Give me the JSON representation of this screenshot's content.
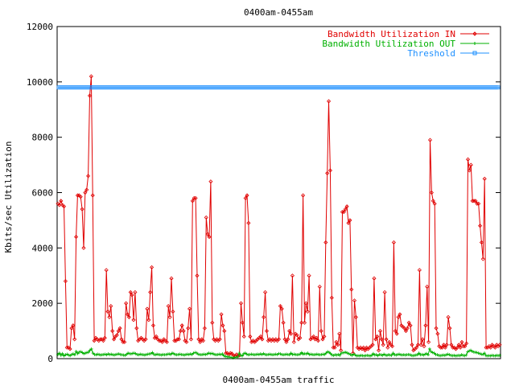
{
  "chart_data": {
    "type": "line",
    "title": "0400am-0455am",
    "xlabel": "0400am-0455am traffic",
    "ylabel": "Kbits/sec Utilization",
    "ylim": [
      0,
      12000
    ],
    "yticks": [
      0,
      2000,
      4000,
      6000,
      8000,
      10000,
      12000
    ],
    "ytick_labels": [
      "0",
      "2000",
      "4000",
      "6000",
      "8000",
      "10000",
      "12000"
    ],
    "grid": false,
    "legend_position": "top-right",
    "colors": {
      "in": "#e00000",
      "out": "#00b000",
      "threshold": "#1e90ff"
    },
    "series": [
      {
        "name": "Bandwidth Utilization IN",
        "values": [
          5600,
          5550,
          5700,
          5550,
          5500,
          2800,
          400,
          400,
          350,
          1100,
          1200,
          700,
          4400,
          5900,
          5900,
          5850,
          5400,
          4000,
          6000,
          6100,
          6600,
          9500,
          10200,
          5900,
          650,
          750,
          700,
          650,
          700,
          700,
          650,
          750,
          3200,
          1700,
          1500,
          1900,
          1000,
          700,
          800,
          850,
          1000,
          1100,
          700,
          600,
          600,
          2000,
          1600,
          1500,
          2400,
          2300,
          1400,
          2400,
          1100,
          650,
          700,
          750,
          700,
          650,
          700,
          1800,
          1400,
          2400,
          3300,
          1200,
          750,
          800,
          700,
          650,
          650,
          600,
          700,
          650,
          600,
          1900,
          1500,
          2900,
          1700,
          650,
          650,
          700,
          700,
          1000,
          1200,
          1000,
          650,
          600,
          1100,
          1800,
          700,
          5700,
          5800,
          5800,
          3000,
          700,
          600,
          700,
          650,
          1100,
          5100,
          4500,
          4400,
          6400,
          1300,
          700,
          650,
          700,
          650,
          700,
          1600,
          1200,
          1000,
          200,
          200,
          150,
          200,
          180,
          120,
          100,
          150,
          100,
          120,
          2000,
          1300,
          800,
          5800,
          5900,
          4900,
          800,
          600,
          650,
          600,
          650,
          700,
          750,
          800,
          700,
          1500,
          2400,
          1000,
          650,
          700,
          650,
          700,
          650,
          700,
          650,
          700,
          1900,
          1800,
          1300,
          700,
          600,
          700,
          1000,
          900,
          3000,
          600,
          900,
          850,
          700,
          750,
          1300,
          5900,
          1300,
          2000,
          1700,
          3000,
          700,
          750,
          800,
          700,
          750,
          650,
          2600,
          1000,
          700,
          800,
          4200,
          6700,
          9300,
          6800,
          2200,
          400,
          400,
          600,
          500,
          900,
          300,
          5300,
          5300,
          5400,
          5500,
          4900,
          5000,
          2500,
          200,
          2100,
          1500,
          400,
          350,
          400,
          350,
          400,
          300,
          400,
          350,
          400,
          450,
          500,
          2900,
          700,
          800,
          300,
          1000,
          700,
          500,
          2400,
          700,
          400,
          600,
          500,
          450,
          4200,
          1000,
          900,
          1500,
          1600,
          1200,
          1150,
          1100,
          1000,
          1100,
          1300,
          1200,
          500,
          300,
          350,
          400,
          500,
          3200,
          500,
          700,
          450,
          1200,
          2600,
          600,
          7900,
          6000,
          5700,
          5600,
          1100,
          900,
          450,
          400,
          400,
          500,
          400,
          500,
          1500,
          1100,
          500,
          400,
          400,
          350,
          400,
          500,
          400,
          600,
          450,
          450,
          550,
          7200,
          6800,
          7000,
          5700,
          5700,
          5700,
          5600,
          5600,
          4800,
          4200,
          3600,
          6500,
          400,
          400,
          450,
          400,
          500,
          450,
          400,
          500,
          450,
          500
        ]
      },
      {
        "name": "Bandwidth Utilization OUT",
        "values": [
          150,
          200,
          120,
          180,
          100,
          140,
          160,
          130,
          110,
          150,
          170,
          140,
          260,
          180,
          240,
          250,
          220,
          180,
          200,
          220,
          230,
          300,
          350,
          200,
          150,
          140,
          160,
          150,
          130,
          140,
          150,
          160,
          140,
          170,
          150,
          160,
          140,
          130,
          150,
          160,
          170,
          150,
          140,
          130,
          120,
          150,
          200,
          180,
          170,
          190,
          200,
          180,
          150,
          140,
          160,
          150,
          140,
          130,
          150,
          160,
          170,
          180,
          220,
          150,
          140,
          160,
          150,
          140,
          130,
          150,
          140,
          150,
          160,
          170,
          150,
          200,
          180,
          150,
          140,
          150,
          160,
          150,
          140,
          130,
          150,
          160,
          150,
          170,
          150,
          200,
          220,
          210,
          160,
          150,
          140,
          150,
          160,
          150,
          170,
          200,
          180,
          190,
          170,
          150,
          140,
          150,
          160,
          150,
          170,
          100,
          80,
          70,
          60,
          50,
          40,
          30,
          40,
          50,
          60,
          200,
          120,
          100,
          180,
          200,
          160,
          140,
          150,
          160,
          150,
          140,
          150,
          160,
          150,
          170,
          150,
          180,
          150,
          140,
          150,
          160,
          150,
          140,
          150,
          160,
          150,
          180,
          170,
          150,
          140,
          150,
          160,
          150,
          140,
          200,
          150,
          160,
          150,
          140,
          150,
          160,
          220,
          160,
          180,
          170,
          200,
          150,
          160,
          150,
          140,
          150,
          160,
          150,
          140,
          150,
          160,
          150,
          200,
          250,
          230,
          180,
          130,
          120,
          140,
          130,
          150,
          120,
          200,
          210,
          220,
          230,
          200,
          180,
          150,
          120,
          160,
          140,
          100,
          110,
          100,
          120,
          110,
          100,
          110,
          120,
          110,
          100,
          120,
          180,
          130,
          140,
          110,
          150,
          140,
          120,
          160,
          130,
          120,
          140,
          130,
          120,
          200,
          140,
          130,
          150,
          160,
          140,
          130,
          140,
          130,
          140,
          150,
          140,
          120,
          110,
          120,
          130,
          140,
          200,
          140,
          150,
          130,
          160,
          180,
          140,
          350,
          250,
          220,
          200,
          150,
          140,
          120,
          110,
          120,
          130,
          120,
          140,
          160,
          140,
          120,
          110,
          120,
          100,
          110,
          120,
          110,
          140,
          120,
          110,
          130,
          250,
          280,
          300,
          260,
          240,
          230,
          220,
          200,
          180,
          160,
          150,
          200,
          110,
          100,
          110,
          100,
          120,
          110,
          100,
          120,
          110,
          120
        ]
      },
      {
        "name": "Threshold",
        "values": [
          9800
        ]
      }
    ]
  }
}
